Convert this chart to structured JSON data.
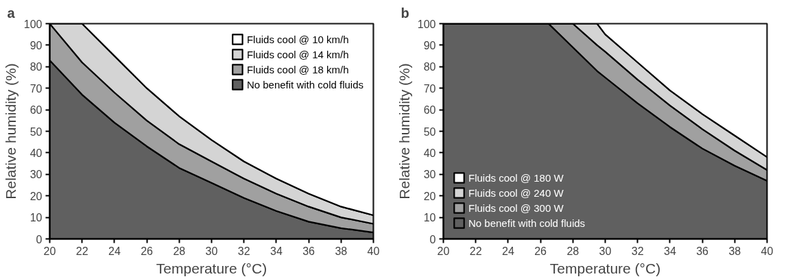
{
  "chart_data": [
    {
      "type": "area",
      "stacked": true,
      "title": "a",
      "xlabel": "Temperature (°C)",
      "ylabel": "Relative humidity (%)",
      "xlim": [
        20,
        40
      ],
      "ylim": [
        0,
        100
      ],
      "xticks": [
        20,
        22,
        24,
        26,
        28,
        30,
        32,
        34,
        36,
        38,
        40
      ],
      "yticks": [
        0,
        10,
        20,
        30,
        40,
        50,
        60,
        70,
        80,
        90,
        100
      ],
      "grid": false,
      "legend": "top right",
      "x": [
        20,
        22,
        24,
        26,
        28,
        30,
        32,
        34,
        36,
        38,
        40
      ],
      "series": [
        {
          "name": "No benefit with cold fluids",
          "color": "#606060",
          "values": [
            83,
            67,
            54,
            43,
            33,
            26,
            19,
            13,
            8,
            5,
            3
          ]
        },
        {
          "name": "Fluids cool @ 18 km/h",
          "color": "#a0a0a0",
          "values": [
            17,
            15,
            14,
            12,
            11,
            10,
            9,
            8,
            7,
            5,
            4
          ]
        },
        {
          "name": "Fluids cool @ 14 km/h",
          "color": "#d4d4d4",
          "values": [
            0,
            18,
            17,
            15,
            13,
            10,
            8,
            7,
            6,
            5,
            4
          ]
        },
        {
          "name": "Fluids cool @ 10 km/h",
          "color": "#ffffff",
          "values": [
            0,
            0,
            15,
            30,
            43,
            54,
            64,
            72,
            79,
            85,
            89
          ]
        }
      ]
    },
    {
      "type": "area",
      "stacked": true,
      "title": "b",
      "xlabel": "Temperature (°C)",
      "ylabel": "Relative humidity (%)",
      "xlim": [
        20,
        40
      ],
      "ylim": [
        0,
        100
      ],
      "xticks": [
        20,
        22,
        24,
        26,
        28,
        30,
        32,
        34,
        36,
        38,
        40
      ],
      "yticks": [
        0,
        10,
        20,
        30,
        40,
        50,
        60,
        70,
        80,
        90,
        100
      ],
      "grid": false,
      "legend": "bottom left",
      "x": [
        20,
        26.5,
        28,
        29.5,
        30,
        32,
        34,
        36,
        38,
        40
      ],
      "series": [
        {
          "name": "No benefit with cold fluids",
          "color": "#606060",
          "values": [
            100,
            100,
            89,
            78,
            75,
            63,
            52,
            42,
            34,
            27
          ]
        },
        {
          "name": "Fluids cool @ 300 W",
          "color": "#a0a0a0",
          "values": [
            0,
            0,
            11,
            12,
            12,
            11,
            10,
            9,
            7,
            5
          ]
        },
        {
          "name": "Fluids cool @ 240 W",
          "color": "#d4d4d4",
          "values": [
            0,
            0,
            0,
            10,
            8,
            8,
            7,
            7,
            7,
            6
          ]
        },
        {
          "name": "Fluids cool @ 180 W",
          "color": "#ffffff",
          "values": [
            0,
            0,
            0,
            0,
            5,
            18,
            31,
            42,
            52,
            62
          ]
        }
      ]
    }
  ]
}
